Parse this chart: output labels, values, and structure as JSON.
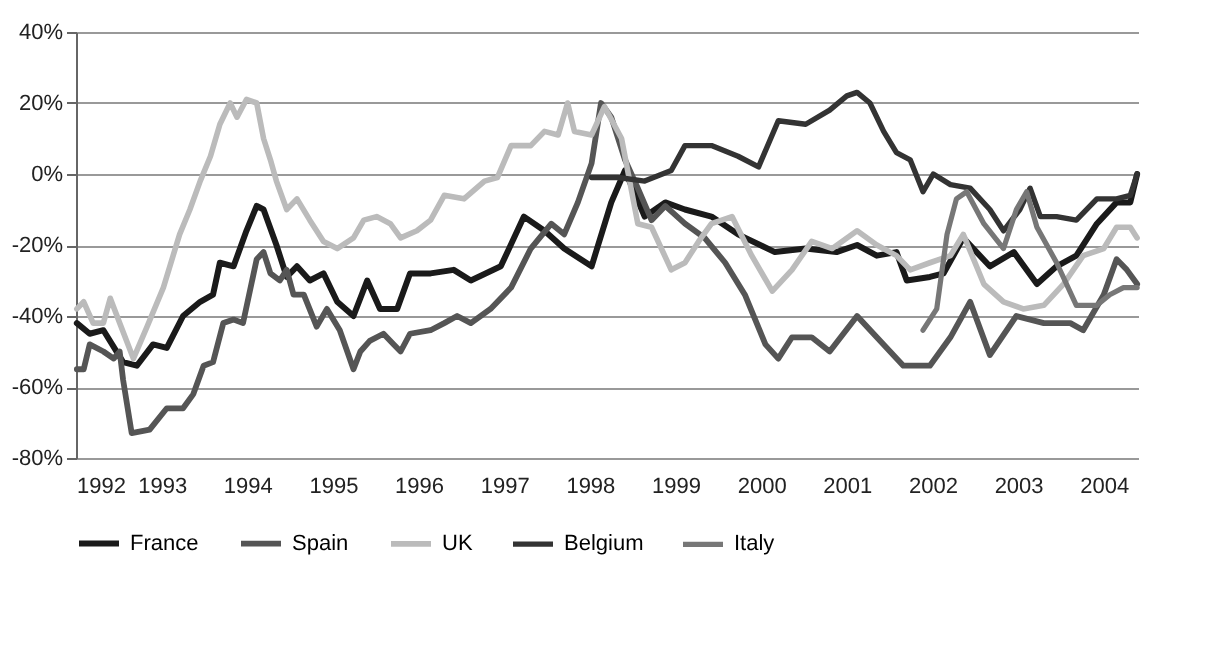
{
  "chart_data": {
    "type": "line",
    "xlim": [
      1992,
      2004.4
    ],
    "xticks": [
      1992,
      1993,
      1994,
      1995,
      1996,
      1997,
      1998,
      1999,
      2000,
      2001,
      2002,
      2003,
      2004
    ],
    "ylim": [
      -80,
      40
    ],
    "yticks": [
      {
        "value": -80,
        "label": "-80%"
      },
      {
        "value": -60,
        "label": "-60%"
      },
      {
        "value": -40,
        "label": "-40%"
      },
      {
        "value": -20,
        "label": "-20%"
      },
      {
        "value": 0,
        "label": "0%"
      },
      {
        "value": 20,
        "label": "20%"
      },
      {
        "value": 40,
        "label": "40%"
      }
    ],
    "grid": "y",
    "legend": "bottom",
    "series": [
      {
        "name": "France",
        "color": "#1a1a1a",
        "x": [
          1992.01,
          1992.16,
          1992.32,
          1992.55,
          1992.71,
          1992.9,
          1993.06,
          1993.25,
          1993.45,
          1993.6,
          1993.68,
          1993.84,
          1993.99,
          1994.11,
          1994.19,
          1994.34,
          1994.46,
          1994.58,
          1994.73,
          1994.89,
          1995.05,
          1995.24,
          1995.4,
          1995.55,
          1995.75,
          1995.9,
          1996.14,
          1996.41,
          1996.61,
          1996.96,
          1997.23,
          1997.47,
          1997.7,
          1998.02,
          1998.25,
          1998.41,
          1998.64,
          1998.88,
          1999.11,
          1999.42,
          1999.73,
          2000.16,
          2000.52,
          2000.88,
          2001.12,
          2001.35,
          2001.58,
          2001.7,
          2001.97,
          2002.13,
          2002.36,
          2002.67,
          2002.95,
          2003.22,
          2003.45,
          2003.68,
          2003.92,
          2004.15,
          2004.31,
          2004.39
        ],
        "values": [
          -42,
          -45,
          -44,
          -53,
          -54,
          -48,
          -49,
          -40,
          -36,
          -34,
          -25,
          -26,
          -16,
          -9,
          -10,
          -20,
          -29,
          -26,
          -30,
          -28,
          -36,
          -40,
          -30,
          -38,
          -38,
          -28,
          -28,
          -27,
          -30,
          -26,
          -12,
          -16,
          -21,
          -26,
          -8,
          1,
          -12,
          -8,
          -10,
          -12,
          -17,
          -22,
          -21,
          -22,
          -20,
          -23,
          -22,
          -30,
          -29,
          -28,
          -18,
          -26,
          -22,
          -31,
          -26,
          -23,
          -14,
          -8,
          -8,
          0
        ]
      },
      {
        "name": "Spain",
        "color": "#555555",
        "x": [
          1992.01,
          1992.09,
          1992.16,
          1992.32,
          1992.44,
          1992.51,
          1992.55,
          1992.65,
          1992.86,
          1993.06,
          1993.25,
          1993.37,
          1993.49,
          1993.6,
          1993.72,
          1993.84,
          1993.95,
          1994.11,
          1994.19,
          1994.27,
          1994.38,
          1994.46,
          1994.54,
          1994.66,
          1994.81,
          1994.93,
          1995.08,
          1995.24,
          1995.32,
          1995.43,
          1995.59,
          1995.71,
          1995.79,
          1995.9,
          1996.14,
          1996.3,
          1996.45,
          1996.61,
          1996.84,
          1997.08,
          1997.31,
          1997.55,
          1997.7,
          1997.86,
          1998.02,
          1998.13,
          1998.25,
          1998.41,
          1998.56,
          1998.72,
          1998.88,
          1999.11,
          1999.34,
          1999.58,
          1999.81,
          2000.05,
          2000.2,
          2000.36,
          2000.59,
          2000.8,
          2001.12,
          2001.35,
          2001.66,
          2001.97,
          2002.21,
          2002.44,
          2002.67,
          2002.98,
          2003.3,
          2003.61,
          2003.76,
          2004.0,
          2004.15,
          2004.27,
          2004.39
        ],
        "values": [
          -55,
          -55,
          -48,
          -50,
          -52,
          -50,
          -58,
          -73,
          -72,
          -66,
          -66,
          -62,
          -54,
          -53,
          -42,
          -41,
          -42,
          -24,
          -22,
          -28,
          -30,
          -27,
          -34,
          -34,
          -43,
          -38,
          -44,
          -55,
          -50,
          -47,
          -45,
          -48,
          -50,
          -45,
          -44,
          -42,
          -40,
          -42,
          -38,
          -32,
          -21,
          -14,
          -17,
          -8,
          3,
          20,
          16,
          4,
          -4,
          -13,
          -9,
          -14,
          -18,
          -25,
          -34,
          -48,
          -52,
          -46,
          -46,
          -50,
          -40,
          -46,
          -54,
          -54,
          -46,
          -36,
          -51,
          -40,
          -42,
          -42,
          -44,
          -34,
          -24,
          -27,
          -31
        ]
      },
      {
        "name": "UK",
        "color": "#bbbbbb",
        "x": [
          1992.01,
          1992.09,
          1992.2,
          1992.32,
          1992.4,
          1992.51,
          1992.67,
          1992.83,
          1993.02,
          1993.21,
          1993.33,
          1993.45,
          1993.57,
          1993.68,
          1993.8,
          1993.88,
          1993.99,
          1994.11,
          1994.19,
          1994.27,
          1994.34,
          1994.46,
          1994.58,
          1994.73,
          1994.89,
          1995.05,
          1995.24,
          1995.36,
          1995.51,
          1995.67,
          1995.79,
          1995.98,
          1996.14,
          1996.3,
          1996.53,
          1996.77,
          1996.92,
          1997.08,
          1997.31,
          1997.47,
          1997.63,
          1997.74,
          1997.82,
          1998.02,
          1998.17,
          1998.37,
          1998.56,
          1998.72,
          1998.95,
          1999.11,
          1999.27,
          1999.42,
          1999.66,
          1999.89,
          2000.13,
          2000.36,
          2000.59,
          2000.83,
          2001.12,
          2001.35,
          2001.58,
          2001.74,
          2001.97,
          2002.21,
          2002.36,
          2002.6,
          2002.83,
          2003.06,
          2003.3,
          2003.53,
          2003.76,
          2004.0,
          2004.15,
          2004.31,
          2004.39
        ],
        "values": [
          -38,
          -36,
          -42,
          -42,
          -35,
          -42,
          -52,
          -43,
          -32,
          -17,
          -10,
          -2,
          5,
          14,
          20,
          16,
          21,
          20,
          10,
          4,
          -2,
          -10,
          -7,
          -13,
          -19,
          -21,
          -18,
          -13,
          -12,
          -14,
          -18,
          -16,
          -13,
          -6,
          -7,
          -2,
          -1,
          8,
          8,
          12,
          11,
          20,
          12,
          11,
          19,
          10,
          -14,
          -15,
          -27,
          -25,
          -19,
          -14,
          -12,
          -23,
          -33,
          -27,
          -19,
          -21,
          -16,
          -20,
          -23,
          -27,
          -25,
          -23,
          -17,
          -31,
          -36,
          -38,
          -37,
          -31,
          -23,
          -21,
          -15,
          -15,
          -18
        ]
      },
      {
        "name": "Belgium",
        "color": "#333333",
        "x": [
          1998.02,
          1998.33,
          1998.64,
          1998.95,
          1999.11,
          1999.42,
          1999.73,
          1999.97,
          2000.2,
          2000.52,
          2000.8,
          2001.0,
          2001.12,
          2001.27,
          2001.43,
          2001.58,
          2001.74,
          2001.89,
          2002.01,
          2002.21,
          2002.44,
          2002.67,
          2002.83,
          2003.02,
          2003.14,
          2003.26,
          2003.45,
          2003.68,
          2003.92,
          2004.15,
          2004.31,
          2004.39
        ],
        "values": [
          -1,
          -1,
          -2,
          1,
          8,
          8,
          5,
          2,
          15,
          14,
          18,
          22,
          23,
          20,
          12,
          6,
          4,
          -5,
          0,
          -3,
          -4,
          -10,
          -16,
          -10,
          -4,
          -12,
          -12,
          -13,
          -7,
          -7,
          -6,
          0
        ]
      },
      {
        "name": "Italy",
        "color": "#777777",
        "x": [
          2001.89,
          2002.05,
          2002.17,
          2002.28,
          2002.4,
          2002.6,
          2002.83,
          2002.98,
          2003.1,
          2003.22,
          2003.45,
          2003.68,
          2003.92,
          2004.07,
          2004.23,
          2004.39
        ],
        "values": [
          -44,
          -38,
          -17,
          -7,
          -5,
          -14,
          -21,
          -10,
          -5,
          -15,
          -25,
          -37,
          -37,
          -34,
          -32,
          -32
        ]
      }
    ]
  }
}
